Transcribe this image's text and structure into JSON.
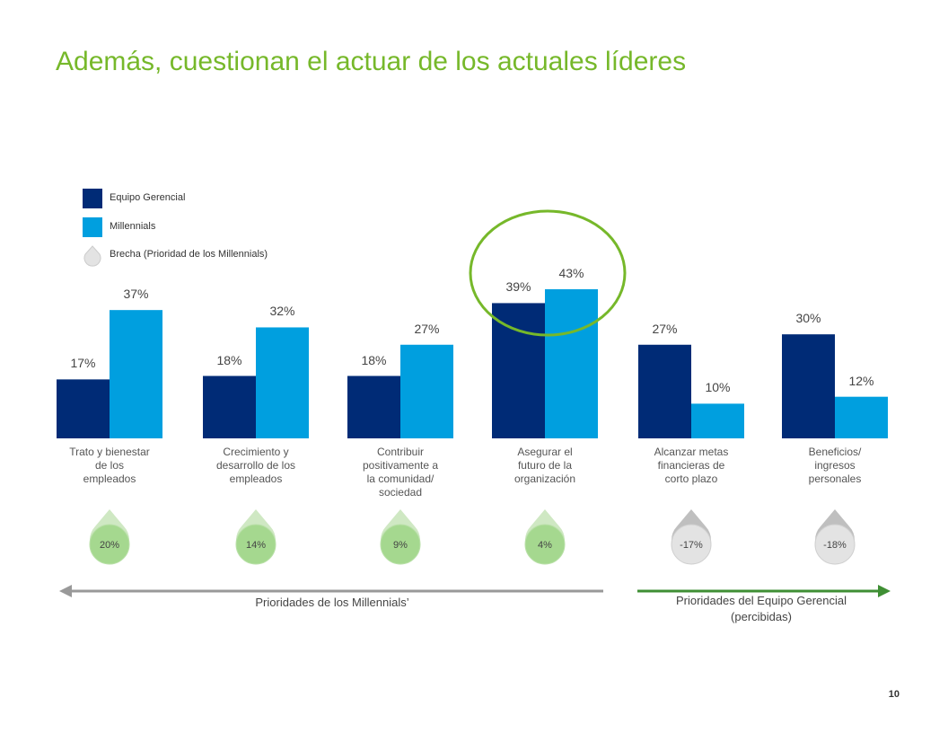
{
  "title": "Además, cuestionan el actuar de los actuales líderes",
  "legend": {
    "equipo": "Equipo Gerencial",
    "millennials": "Millennials",
    "brecha": "Brecha (Prioridad de los Millennials)"
  },
  "colors": {
    "equipo": "#002b76",
    "millennials": "#009fdf",
    "title": "#76b82a",
    "gap_positive": "#a5d88f",
    "gap_negative": "#e3e3e3",
    "arrow_left": "#999999",
    "arrow_right": "#3f8f34",
    "highlight_circle": "#76b82a"
  },
  "chart_data": {
    "type": "bar",
    "categories": [
      "Trato y bienestar de los empleados",
      "Crecimiento y desarrollo de los empleados",
      "Contribuir positivamente a la comunidad/ sociedad",
      "Asegurar el futuro de la organización",
      "Alcanzar metas financieras de corto plazo",
      "Beneficios/ ingresos personales"
    ],
    "series": [
      {
        "name": "Equipo Gerencial",
        "values": [
          17,
          18,
          18,
          39,
          27,
          30
        ],
        "labels": [
          "17%",
          "18%",
          "18%",
          "39%",
          "27%",
          "30%"
        ]
      },
      {
        "name": "Millennials",
        "values": [
          37,
          32,
          27,
          43,
          10,
          12
        ],
        "labels": [
          "37%",
          "32%",
          "27%",
          "43%",
          "10%",
          "12%"
        ]
      }
    ],
    "gap": {
      "name": "Brecha (Prioridad de los Millennials)",
      "values": [
        20,
        14,
        9,
        4,
        -17,
        -18
      ],
      "labels": [
        "20%",
        "14%",
        "9%",
        "4%",
        "-17%",
        "-18%"
      ]
    },
    "highlighted_category": "Asegurar el futuro de la organización"
  },
  "axis_labels": {
    "left": "Prioridades de los Millennials’",
    "right_line1": "Prioridades del Equipo Gerencial",
    "right_line2": "(percibidas)"
  },
  "page_number": "10"
}
